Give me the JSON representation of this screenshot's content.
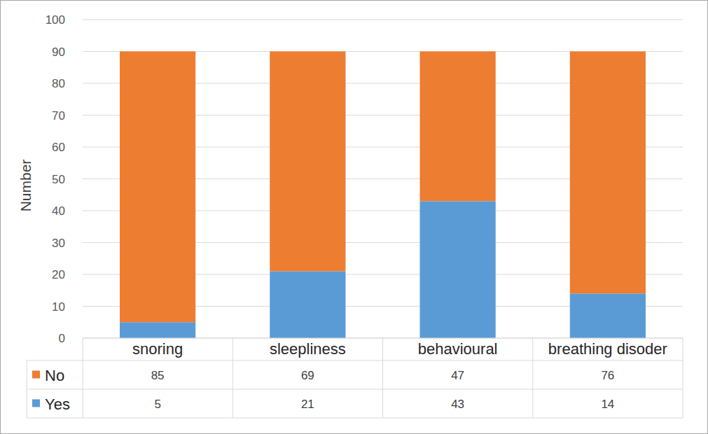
{
  "chart_data": {
    "type": "bar",
    "stacked": true,
    "y_label": "Number",
    "categories": [
      "snoring",
      "sleepliness",
      "behavioural",
      "breathing disoder"
    ],
    "series": [
      {
        "name": "Yes",
        "color": "#5b9bd5",
        "values": [
          5,
          21,
          43,
          14
        ]
      },
      {
        "name": "No",
        "color": "#ed7d31",
        "values": [
          85,
          69,
          47,
          76
        ]
      }
    ],
    "ylim": [
      0,
      100
    ],
    "yticks": [
      0,
      10,
      20,
      30,
      40,
      50,
      60,
      70,
      80,
      90,
      100
    ],
    "grid": true
  }
}
